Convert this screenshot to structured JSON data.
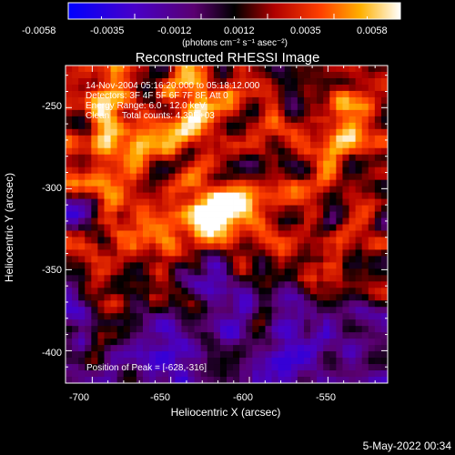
{
  "colorbar": {
    "tick_labels": [
      "-0.0058",
      "-0.0035",
      "-0.0012",
      "0.0012",
      "0.0035",
      "0.0058"
    ],
    "units_label": "(photons cm⁻² s⁻¹ asec⁻²)"
  },
  "plot": {
    "title": "Reconstructed RHESSI Image",
    "xlabel": "Heliocentric X (arcsec)",
    "ylabel": "Heliocentric Y (arcsec)",
    "x_tick_labels": [
      "-700",
      "-650",
      "-600",
      "-550"
    ],
    "y_tick_labels": [
      "-250",
      "-300",
      "-350",
      "-400"
    ]
  },
  "annotations": {
    "line1": "14-Nov-2004 05:16:20.000 to 05:18:12.000",
    "line2": "Detectors: 3F 4F 5F 6F 7F 8F, Att 0",
    "line3": "Energy Range: 6.0 - 12.0 keV",
    "line4": "Clean     Total counts: 4.39E+03",
    "peak": "Position of Peak = [-628,-316]"
  },
  "footer": {
    "timestamp": "5-May-2022 00:34"
  },
  "image_data": {
    "x_range": [
      -717,
      -512
    ],
    "y_range": [
      -420,
      -224
    ],
    "colormap": [
      "#0000ff",
      "#5a00b0",
      "#000000",
      "#cc1000",
      "#ff9a00",
      "#ffffff"
    ],
    "peak_position": [
      -628,
      -316
    ],
    "value_range": [
      -0.0058,
      0.0058
    ]
  }
}
